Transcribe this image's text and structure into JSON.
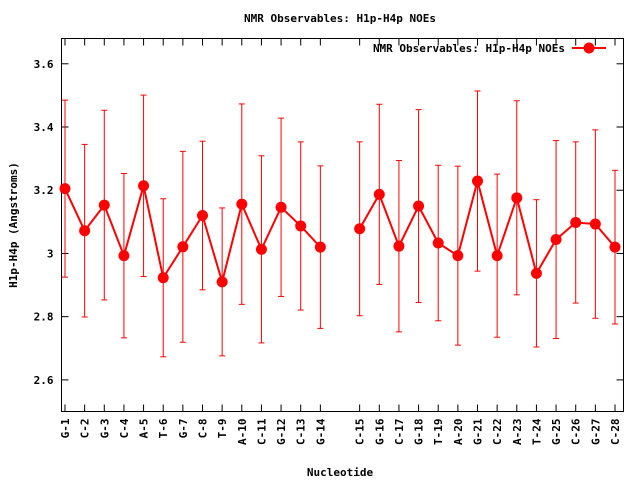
{
  "chart_data": {
    "type": "line",
    "title": "NMR Observables: H1p-H4p NOEs",
    "xlabel": "Nucleotide",
    "ylabel": "H1p-H4p (Angstroms)",
    "ylim": [
      2.5,
      3.68
    ],
    "yticks": [
      2.6,
      2.8,
      3,
      3.2,
      3.4,
      3.6
    ],
    "ytick_labels": [
      "2.6",
      "2.8",
      "3",
      "3.2",
      "3.4",
      "3.6"
    ],
    "grid": false,
    "legend_position": "top-right",
    "categories": [
      "G-1",
      "C-2",
      "G-3",
      "C-4",
      "A-5",
      "T-6",
      "G-7",
      "C-8",
      "T-9",
      "A-10",
      "C-11",
      "G-12",
      "C-13",
      "G-14",
      "",
      "C-15",
      "G-16",
      "C-17",
      "G-18",
      "T-19",
      "A-20",
      "G-21",
      "C-22",
      "A-23",
      "T-24",
      "G-25",
      "C-26",
      "G-27",
      "C-28"
    ],
    "series": [
      {
        "name": "NMR Observables: H1p-H4p NOEs",
        "color": "#ff0000",
        "values": [
          3.205,
          3.072,
          3.153,
          2.993,
          3.214,
          2.923,
          3.021,
          3.12,
          2.91,
          3.156,
          3.013,
          3.146,
          3.087,
          3.02,
          null,
          3.078,
          3.187,
          3.023,
          3.15,
          3.033,
          2.993,
          3.229,
          2.993,
          3.176,
          2.937,
          3.044,
          3.098,
          3.093,
          3.02
        ],
        "errors": [
          0.28,
          0.273,
          0.3,
          0.26,
          0.287,
          0.25,
          0.302,
          0.235,
          0.234,
          0.317,
          0.296,
          0.282,
          0.266,
          0.257,
          null,
          0.275,
          0.285,
          0.271,
          0.305,
          0.246,
          0.283,
          0.285,
          0.258,
          0.307,
          0.233,
          0.313,
          0.255,
          0.298,
          0.243
        ]
      }
    ]
  }
}
